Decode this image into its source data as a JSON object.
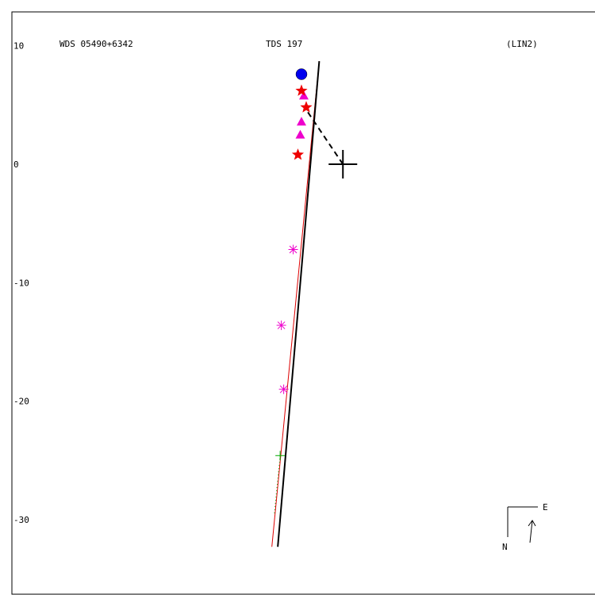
{
  "header": {
    "left": "WDS 05490+6342",
    "center": "TDS 197",
    "right": "(LIN2)"
  },
  "compass": {
    "east_label": "E",
    "north_label": "N"
  },
  "chart_data": {
    "type": "scatter",
    "title": "",
    "xlabel": "",
    "ylabel": "",
    "ylim": [
      -36,
      13
    ],
    "yticks": [
      10,
      0,
      -10,
      -20,
      -30
    ],
    "ytick_labels": [
      "10",
      "0",
      "-10",
      "-20",
      "-30"
    ],
    "grid": false,
    "colors": {
      "orbit_line": "#000000",
      "alt_line": "#dd0000",
      "asterisk": "#ee00cc",
      "triangle": "#ee00cc",
      "star": "#ee0000",
      "circle": "#0000ee",
      "plus": "#00aa00"
    },
    "primary": {
      "x": 3.5,
      "y": 0
    },
    "fit_line": {
      "x": [
        -2.0,
        1.5
      ],
      "y": [
        -32.3,
        8.7
      ]
    },
    "alt_line": {
      "x": [
        -2.5,
        1.5
      ],
      "y": [
        -32.3,
        8.7
      ]
    },
    "dashed_connector": {
      "x": [
        3.5,
        0.4
      ],
      "y": [
        0,
        4.6
      ]
    },
    "series": [
      {
        "marker": "asterisk",
        "x": [
          -0.7,
          -1.7,
          -1.5
        ],
        "y": [
          -7.2,
          -13.6,
          -19.0
        ]
      },
      {
        "marker": "triangle",
        "x": [
          0.2,
          0.0,
          -0.1
        ],
        "y": [
          5.8,
          3.6,
          2.5
        ]
      },
      {
        "marker": "star",
        "x": [
          0.0,
          0.4,
          -0.3
        ],
        "y": [
          6.2,
          4.8,
          0.8
        ]
      },
      {
        "marker": "circle",
        "x": [
          0.0
        ],
        "y": [
          7.6
        ]
      },
      {
        "marker": "plus",
        "x": [
          -1.8
        ],
        "y": [
          -24.6
        ]
      }
    ]
  }
}
